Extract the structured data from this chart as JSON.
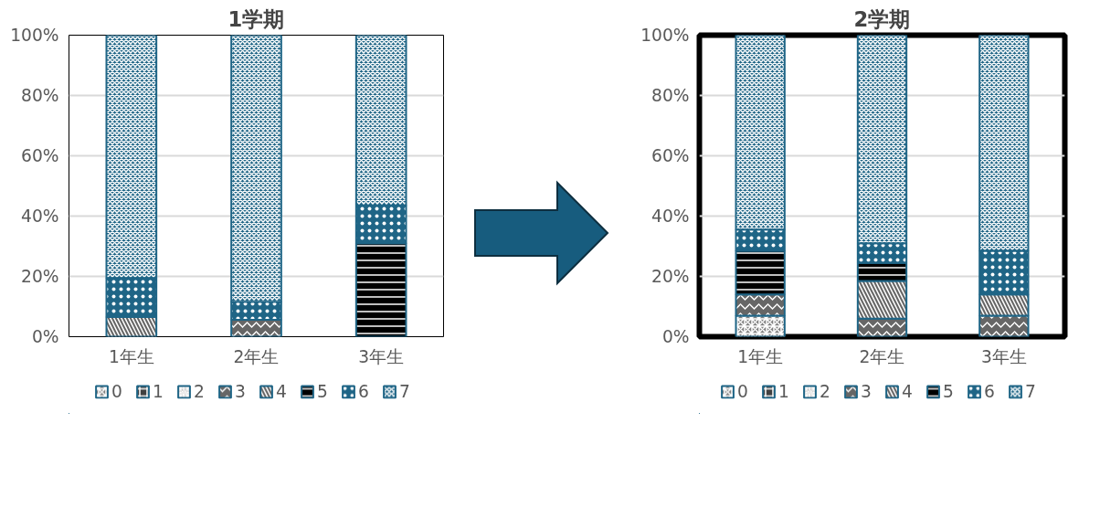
{
  "chart_data": [
    {
      "type": "bar",
      "title": "1学期",
      "stacked": true,
      "categories": [
        "1年生",
        "2年生",
        "3年生"
      ],
      "ylim": [
        0,
        100
      ],
      "yticks": [
        {
          "value": 0,
          "label": "0%"
        },
        {
          "value": 20,
          "label": "20%"
        },
        {
          "value": 40,
          "label": "40%"
        },
        {
          "value": 60,
          "label": "60%"
        },
        {
          "value": 80,
          "label": "80%"
        },
        {
          "value": 100,
          "label": "100%"
        }
      ],
      "grid": "y",
      "legend": "bottom",
      "series": [
        {
          "name": "0",
          "color": "#808080",
          "values": [
            0,
            0,
            0
          ]
        },
        {
          "name": "1",
          "color": "#404040",
          "values": [
            0,
            0,
            0
          ]
        },
        {
          "name": "2",
          "color": "#404040",
          "values": [
            0,
            0,
            0
          ]
        },
        {
          "name": "3",
          "color": "#666666",
          "values": [
            0,
            5.6,
            0
          ]
        },
        {
          "name": "4",
          "color": "#666666",
          "values": [
            6.5,
            0,
            0
          ]
        },
        {
          "name": "5",
          "color": "#000000",
          "values": [
            0,
            0,
            31
          ]
        },
        {
          "name": "6",
          "color": "#1f6586",
          "values": [
            13,
            6,
            12.5
          ]
        },
        {
          "name": "7",
          "color": "#1f6586",
          "values": [
            80.5,
            88.4,
            56.5
          ]
        }
      ]
    },
    {
      "type": "bar",
      "title": "2学期",
      "stacked": true,
      "categories": [
        "1年生",
        "2年生",
        "3年生"
      ],
      "ylim": [
        0,
        100
      ],
      "yticks": [
        {
          "value": 0,
          "label": "0%"
        },
        {
          "value": 20,
          "label": "20%"
        },
        {
          "value": 40,
          "label": "40%"
        },
        {
          "value": 60,
          "label": "60%"
        },
        {
          "value": 80,
          "label": "80%"
        },
        {
          "value": 100,
          "label": "100%"
        }
      ],
      "grid": "y",
      "legend": "bottom",
      "series": [
        {
          "name": "0",
          "color": "#808080",
          "values": [
            7,
            0,
            0
          ]
        },
        {
          "name": "1",
          "color": "#404040",
          "values": [
            0,
            0,
            0
          ]
        },
        {
          "name": "2",
          "color": "#404040",
          "values": [
            0,
            0,
            0
          ]
        },
        {
          "name": "3",
          "color": "#666666",
          "values": [
            7,
            6,
            7
          ]
        },
        {
          "name": "4",
          "color": "#666666",
          "values": [
            0,
            12.5,
            7
          ]
        },
        {
          "name": "5",
          "color": "#000000",
          "values": [
            14.5,
            6,
            0
          ]
        },
        {
          "name": "6",
          "color": "#1f6586",
          "values": [
            7,
            6.5,
            14.5
          ]
        },
        {
          "name": "7",
          "color": "#1f6586",
          "values": [
            64.5,
            69,
            71.5
          ]
        }
      ]
    }
  ]
}
